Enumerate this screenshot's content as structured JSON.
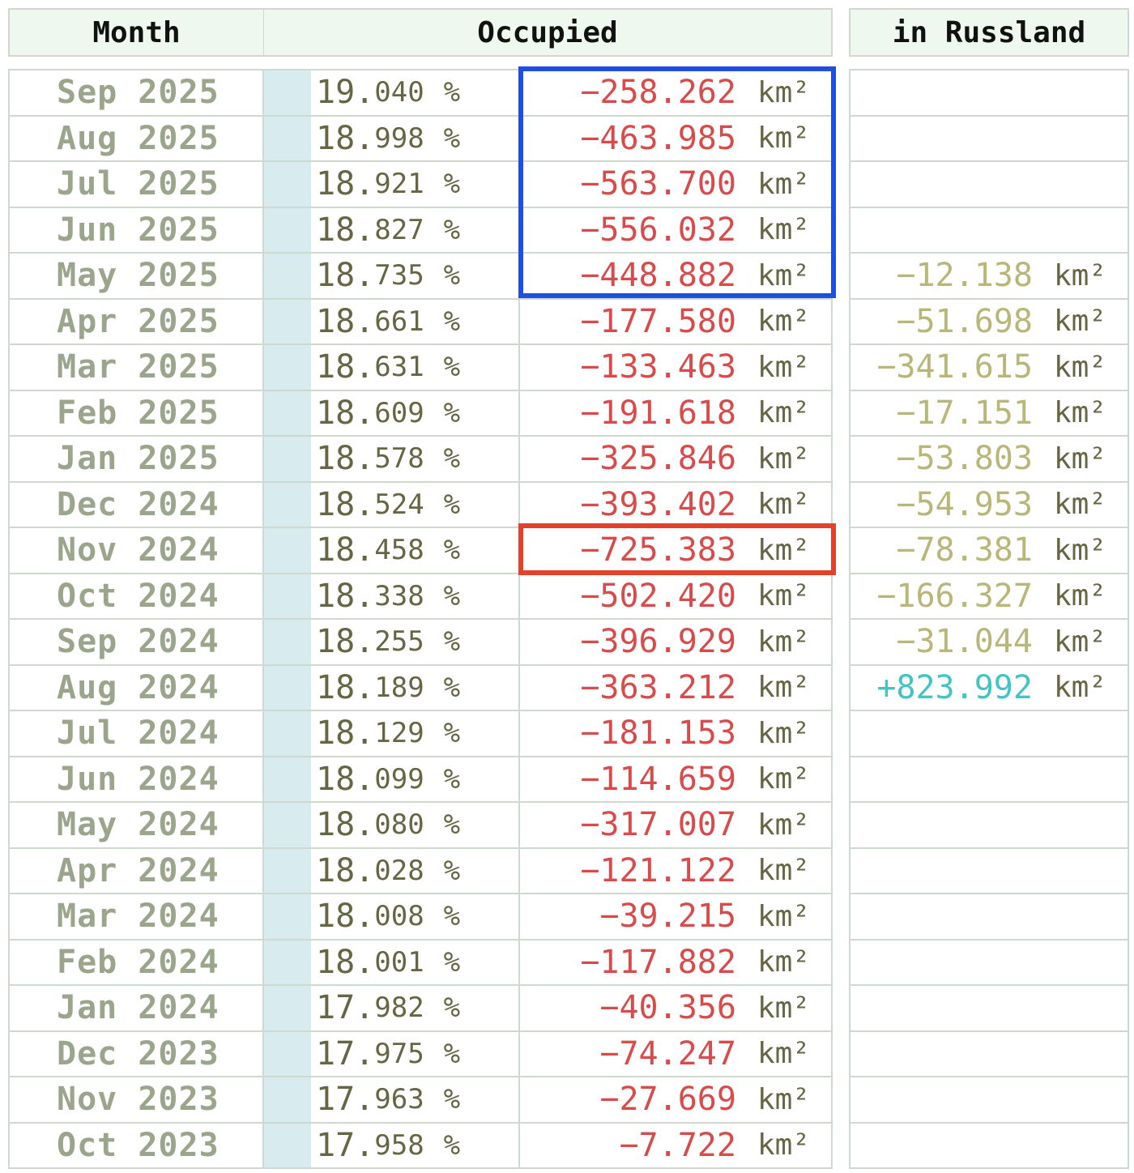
{
  "headers": {
    "month": "Month",
    "occupied": "Occupied",
    "russland": "in Russland"
  },
  "colors": {
    "negative": "#d94a4a",
    "russland_negative": "#b8b678",
    "russland_positive": "#42c4c4",
    "highlight_blue": "#1f4fe0",
    "highlight_red": "#e2412c"
  },
  "rows": [
    {
      "month": "Sep 2025",
      "pct_int": "19.",
      "pct_dec": "040",
      "km": "−258.262",
      "rus": ""
    },
    {
      "month": "Aug 2025",
      "pct_int": "18.",
      "pct_dec": "998",
      "km": "−463.985",
      "rus": ""
    },
    {
      "month": "Jul 2025",
      "pct_int": "18.",
      "pct_dec": "921",
      "km": "−563.700",
      "rus": ""
    },
    {
      "month": "Jun 2025",
      "pct_int": "18.",
      "pct_dec": "827",
      "km": "−556.032",
      "rus": ""
    },
    {
      "month": "May 2025",
      "pct_int": "18.",
      "pct_dec": "735",
      "km": "−448.882",
      "rus": "−12.138"
    },
    {
      "month": "Apr 2025",
      "pct_int": "18.",
      "pct_dec": "661",
      "km": "−177.580",
      "rus": "−51.698"
    },
    {
      "month": "Mar 2025",
      "pct_int": "18.",
      "pct_dec": "631",
      "km": "−133.463",
      "rus": "−341.615"
    },
    {
      "month": "Feb 2025",
      "pct_int": "18.",
      "pct_dec": "609",
      "km": "−191.618",
      "rus": "−17.151"
    },
    {
      "month": "Jan 2025",
      "pct_int": "18.",
      "pct_dec": "578",
      "km": "−325.846",
      "rus": "−53.803"
    },
    {
      "month": "Dec 2024",
      "pct_int": "18.",
      "pct_dec": "524",
      "km": "−393.402",
      "rus": "−54.953"
    },
    {
      "month": "Nov 2024",
      "pct_int": "18.",
      "pct_dec": "458",
      "km": "−725.383",
      "rus": "−78.381"
    },
    {
      "month": "Oct 2024",
      "pct_int": "18.",
      "pct_dec": "338",
      "km": "−502.420",
      "rus": "−166.327"
    },
    {
      "month": "Sep 2024",
      "pct_int": "18.",
      "pct_dec": "255",
      "km": "−396.929",
      "rus": "−31.044"
    },
    {
      "month": "Aug 2024",
      "pct_int": "18.",
      "pct_dec": "189",
      "km": "−363.212",
      "rus": "+823.992"
    },
    {
      "month": "Jul 2024",
      "pct_int": "18.",
      "pct_dec": "129",
      "km": "−181.153",
      "rus": ""
    },
    {
      "month": "Jun 2024",
      "pct_int": "18.",
      "pct_dec": "099",
      "km": "−114.659",
      "rus": ""
    },
    {
      "month": "May 2024",
      "pct_int": "18.",
      "pct_dec": "080",
      "km": "−317.007",
      "rus": ""
    },
    {
      "month": "Apr 2024",
      "pct_int": "18.",
      "pct_dec": "028",
      "km": "−121.122",
      "rus": ""
    },
    {
      "month": "Mar 2024",
      "pct_int": "18.",
      "pct_dec": "008",
      "km": "−39.215",
      "rus": ""
    },
    {
      "month": "Feb 2024",
      "pct_int": "18.",
      "pct_dec": "001",
      "km": "−117.882",
      "rus": ""
    },
    {
      "month": "Jan 2024",
      "pct_int": "17.",
      "pct_dec": "982",
      "km": "−40.356",
      "rus": ""
    },
    {
      "month": "Dec 2023",
      "pct_int": "17.",
      "pct_dec": "975",
      "km": "−74.247",
      "rus": ""
    },
    {
      "month": "Nov 2023",
      "pct_int": "17.",
      "pct_dec": "963",
      "km": "−27.669",
      "rus": ""
    },
    {
      "month": "Oct 2023",
      "pct_int": "17.",
      "pct_dec": "958",
      "km": "−7.722",
      "rus": ""
    }
  ],
  "units": {
    "percent": "%",
    "area": "km²"
  }
}
